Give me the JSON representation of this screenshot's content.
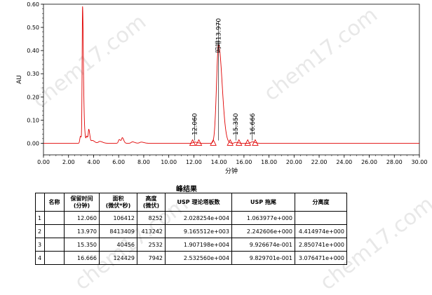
{
  "chart_data": {
    "type": "line",
    "ylabel": "AU",
    "xlabel": "分钟",
    "xlim": [
      0,
      30
    ],
    "ylim": [
      -0.05,
      0.6
    ],
    "x_ticks": [
      "0.00",
      "2.00",
      "4.00",
      "6.00",
      "8.00",
      "10.00",
      "12.00",
      "14.00",
      "16.00",
      "18.00",
      "20.00",
      "22.00",
      "24.00",
      "26.00",
      "28.00",
      "30.00"
    ],
    "y_ticks": [
      "0.00",
      "0.10",
      "0.20",
      "0.30",
      "0.40",
      "0.50",
      "0.60"
    ],
    "line_color": "#e00000",
    "baseline": 0.0,
    "peaks": [
      {
        "rt": 2.95,
        "height": 0.03,
        "width": 0.05
      },
      {
        "rt": 3.12,
        "height": 0.585,
        "width": 0.035
      },
      {
        "rt": 3.25,
        "height": 0.06,
        "width": 0.04
      },
      {
        "rt": 3.45,
        "height": 0.03,
        "width": 0.05
      },
      {
        "rt": 3.62,
        "height": 0.055,
        "width": 0.045
      },
      {
        "rt": 3.9,
        "height": 0.012,
        "width": 0.1
      },
      {
        "rt": 4.5,
        "height": 0.008,
        "width": 0.12
      },
      {
        "rt": 6.05,
        "height": 0.016,
        "width": 0.07
      },
      {
        "rt": 6.3,
        "height": 0.022,
        "width": 0.06
      },
      {
        "rt": 7.1,
        "height": 0.006,
        "width": 0.1
      },
      {
        "rt": 7.8,
        "height": 0.005,
        "width": 0.12
      },
      {
        "rt": 12.06,
        "height": 0.005,
        "width": 0.12
      },
      {
        "rt": 13.97,
        "height": 0.425,
        "width": 0.16
      },
      {
        "rt": 15.35,
        "height": 0.004,
        "width": 0.1
      },
      {
        "rt": 16.666,
        "height": 0.006,
        "width": 0.12
      }
    ],
    "peak_labels": [
      {
        "rt": 12.06,
        "text": "12.060",
        "label_top": 0.13
      },
      {
        "rt": 13.97,
        "text": "吗啡13.970",
        "label_top": 0.54
      },
      {
        "rt": 15.35,
        "text": "15.350",
        "label_top": 0.13
      },
      {
        "rt": 16.666,
        "text": "16.666",
        "label_top": 0.13
      }
    ],
    "integration_markers": [
      11.9,
      12.4,
      13.55,
      14.9,
      15.6,
      16.3,
      16.9
    ]
  },
  "results": {
    "title": "峰结果",
    "headers": [
      "",
      "名称",
      "保留时间\n(分钟)",
      "面积\n(微伏*秒)",
      "高度\n(微伏)",
      "USP 理论塔板数",
      "USP 拖尾",
      "分离度"
    ],
    "rows": [
      [
        "1",
        "",
        "12.060",
        "106412",
        "8252",
        "2.028254e+004",
        "1.063977e+000",
        ""
      ],
      [
        "2",
        "",
        "13.970",
        "8413409",
        "413242",
        "9.165512e+003",
        "2.242606e+000",
        "4.414974e+000"
      ],
      [
        "3",
        "",
        "15.350",
        "40456",
        "2532",
        "1.907198e+004",
        "9.926674e-001",
        "2.850741e+000"
      ],
      [
        "4",
        "",
        "16.666",
        "124429",
        "7942",
        "2.532560e+004",
        "9.829701e-001",
        "3.076471e+000"
      ]
    ]
  },
  "watermarks": [
    "chem17.com",
    "chem17.com",
    "chem17.com",
    "chem17.com"
  ]
}
